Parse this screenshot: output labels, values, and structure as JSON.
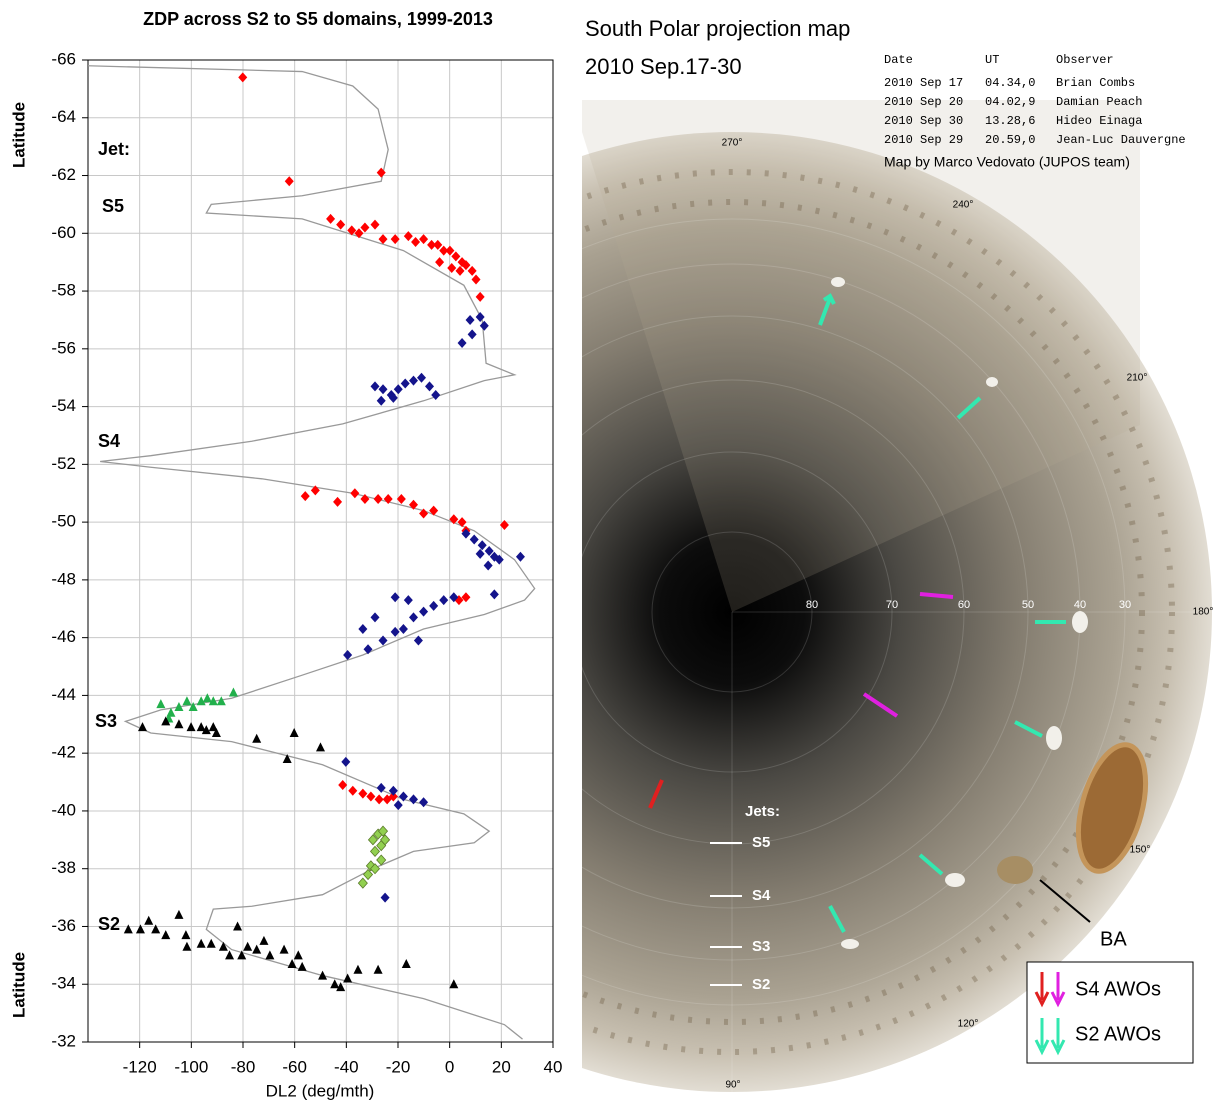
{
  "chart_data": {
    "type": "scatter",
    "title": "ZDP across S2 to S5 domains, 1999-2013",
    "x_label": "DL2 (deg/mth)",
    "y_label": "Latitude",
    "annotations": [
      "Jet:",
      "S5",
      "S4",
      "S3",
      "S2"
    ],
    "xlim": [
      -140,
      40
    ],
    "ylim": [
      -32,
      -66
    ],
    "xticks": [
      -120,
      -100,
      -80,
      -60,
      -40,
      -20,
      0,
      20,
      40
    ],
    "yticks": [
      -66,
      -64,
      -62,
      -60,
      -58,
      -56,
      -54,
      -52,
      -50,
      -48,
      -46,
      -44,
      -42,
      -40,
      -38,
      -36,
      -34,
      -32
    ],
    "grid": true,
    "series": [
      {
        "color": "#999999",
        "line": true,
        "x": [
          -140,
          -57.1,
          -37.5,
          -27.7,
          -23.8,
          -26.5,
          -57.1,
          -92.3,
          -94.2,
          -57.1,
          -17.9,
          5.5,
          12.6,
          14.1,
          25.1,
          13.4,
          -10.1,
          -41.4,
          -76.6,
          -115.7,
          -135.3,
          -115.7,
          -72.7,
          -37.5,
          -10.1,
          9.5,
          25.1,
          32.9,
          29.0,
          13.4,
          -10.1,
          -33.6,
          -57.1,
          -84.4,
          -111.8,
          -125.5,
          -115.7,
          -84.4,
          -49.2,
          -17.9,
          5.5,
          15.3,
          9.5,
          -14.0,
          -29.7,
          -49.2,
          -76.6,
          -91.5,
          -94.2,
          -84.4,
          -49.2,
          -10.1,
          21.2,
          28.2
        ],
        "values": [
          -65.8,
          -65.6,
          -65.1,
          -64.3,
          -62.9,
          -61.8,
          -61.3,
          -61.0,
          -60.7,
          -60.5,
          -59.4,
          -58.2,
          -57.0,
          -55.5,
          -55.1,
          -54.9,
          -54.2,
          -53.4,
          -52.8,
          -52.3,
          -52.1,
          -51.9,
          -51.5,
          -51.0,
          -50.4,
          -49.7,
          -48.7,
          -47.7,
          -47.3,
          -46.8,
          -46.3,
          -45.4,
          -44.7,
          -43.9,
          -43.5,
          -43.1,
          -42.7,
          -42.4,
          -41.6,
          -40.4,
          -39.9,
          -39.3,
          -38.9,
          -38.6,
          -38.0,
          -37.1,
          -36.7,
          -36.6,
          -35.9,
          -35.2,
          -34.3,
          -33.5,
          -32.6,
          -32.1
        ]
      },
      {
        "color": "#ff0000",
        "marker": "diamond",
        "x": [
          -80.1,
          -62.1,
          -26.5,
          -46.1,
          -42.2,
          -37.9,
          -35.1,
          -32.8,
          -28.9,
          -25.8,
          -21.1,
          -16.0,
          -13.2,
          -10.1,
          -7.0,
          -4.6,
          -2.3,
          0.1,
          2.4,
          4.8,
          6.3,
          8.7,
          10.2,
          11.8,
          -3.9,
          0.8,
          4.0,
          -55.9,
          -52.0,
          -43.4,
          -36.7,
          -32.8,
          -27.7,
          -23.8,
          -18.7,
          -14.0,
          -10.1,
          -6.2,
          1.6,
          4.8,
          6.3,
          21.2,
          3.6,
          6.3,
          -41.4,
          -37.5,
          -33.6,
          -30.5,
          -27.3,
          -24.2,
          -21.8
        ],
        "values": [
          -65.4,
          -61.8,
          -62.1,
          -60.5,
          -60.3,
          -60.1,
          -60.0,
          -60.2,
          -60.3,
          -59.8,
          -59.8,
          -59.9,
          -59.7,
          -59.8,
          -59.6,
          -59.6,
          -59.4,
          -59.4,
          -59.2,
          -59.0,
          -58.9,
          -58.7,
          -58.4,
          -57.8,
          -59.0,
          -58.8,
          -58.7,
          -50.9,
          -51.1,
          -50.7,
          -51.0,
          -50.8,
          -50.8,
          -50.8,
          -50.8,
          -50.6,
          -50.3,
          -50.4,
          -50.1,
          -50.0,
          -49.7,
          -49.9,
          -47.3,
          -47.4,
          -40.9,
          -40.7,
          -40.6,
          -40.5,
          -40.4,
          -40.4,
          -40.5
        ]
      },
      {
        "color": "#14148c",
        "marker": "diamond",
        "x": [
          7.9,
          11.8,
          13.4,
          4.8,
          8.7,
          -28.9,
          -25.8,
          -22.6,
          -19.9,
          -17.2,
          -14.0,
          -10.9,
          -7.8,
          -5.4,
          -26.5,
          -21.8,
          6.3,
          9.5,
          12.6,
          15.3,
          17.3,
          19.2,
          14.9,
          27.4,
          11.8,
          -39.5,
          -31.6,
          -25.8,
          -21.1,
          -17.9,
          -14.0,
          -10.1,
          -6.2,
          -2.3,
          1.6,
          -21.1,
          -16.0,
          -12.1,
          -33.6,
          -28.9,
          17.3,
          -40.2,
          -26.5,
          -21.8,
          -17.9,
          -14.0,
          -10.1,
          -19.9,
          -25.0
        ],
        "values": [
          -57.0,
          -57.1,
          -56.8,
          -56.2,
          -56.5,
          -54.7,
          -54.6,
          -54.4,
          -54.6,
          -54.8,
          -54.9,
          -55.0,
          -54.7,
          -54.4,
          -54.2,
          -54.3,
          -49.6,
          -49.4,
          -49.2,
          -49.0,
          -48.8,
          -48.7,
          -48.5,
          -48.8,
          -48.9,
          -45.4,
          -45.6,
          -45.9,
          -46.2,
          -46.3,
          -46.7,
          -46.9,
          -47.1,
          -47.3,
          -47.4,
          -47.4,
          -47.3,
          -45.9,
          -46.3,
          -46.7,
          -47.5,
          -41.7,
          -40.8,
          -40.7,
          -40.5,
          -40.4,
          -40.3,
          -40.2,
          -37.0
        ]
      },
      {
        "color": "#22b04c",
        "marker": "triangle",
        "x": [
          -111.8,
          -107.9,
          -104.8,
          -101.7,
          -99.3,
          -96.2,
          -93.8,
          -91.5,
          -88.4,
          -83.7,
          -108.7
        ],
        "values": [
          -43.7,
          -43.4,
          -43.6,
          -43.8,
          -43.6,
          -43.8,
          -43.9,
          -43.8,
          -43.8,
          -44.1,
          -43.2
        ]
      },
      {
        "color": "#000000",
        "marker": "triangle",
        "x": [
          -118.9,
          -109.9,
          -104.8,
          -100.1,
          -96.2,
          -94.2,
          -90.3,
          -74.7,
          -60.2,
          -62.9,
          -50.0,
          -91.5,
          -124.4,
          -119.7,
          -116.5,
          -113.8,
          -109.9,
          -104.8,
          -102.1,
          -96.2,
          -92.3,
          -87.6,
          -85.2,
          -82.1,
          -78.2,
          -74.7,
          -69.6,
          -64.1,
          -61.0,
          -57.1,
          -49.2,
          -44.5,
          -42.2,
          -39.5,
          -35.5,
          -27.7,
          -16.8,
          1.6,
          -101.7,
          -80.5,
          -71.9,
          -58.6
        ],
        "values": [
          -42.9,
          -43.1,
          -43.0,
          -42.9,
          -42.9,
          -42.8,
          -42.7,
          -42.5,
          -42.7,
          -41.8,
          -42.2,
          -42.9,
          -35.9,
          -35.9,
          -36.2,
          -35.9,
          -35.7,
          -36.4,
          -35.7,
          -35.4,
          -35.4,
          -35.3,
          -35.0,
          -36.0,
          -35.3,
          -35.2,
          -35.0,
          -35.2,
          -34.7,
          -34.6,
          -34.3,
          -34.0,
          -33.9,
          -34.2,
          -34.5,
          -34.5,
          -34.7,
          -34.0,
          -35.3,
          -35.0,
          -35.5,
          -35.0
        ]
      },
      {
        "color": "#92d050",
        "marker": "diamond",
        "x": [
          -29.7,
          -27.7,
          -25.8,
          -28.9,
          -26.5,
          -30.5,
          -31.6,
          -33.6,
          -28.9,
          -26.5,
          -25.0
        ],
        "values": [
          -39.0,
          -39.2,
          -39.3,
          -38.6,
          -38.3,
          -38.1,
          -37.8,
          -37.5,
          -38.0,
          -38.8,
          -39.0
        ]
      }
    ]
  },
  "map": {
    "title": "South Polar projection map",
    "subtitle": "2010 Sep.17-30",
    "table": {
      "header": [
        "Date",
        "UT",
        "Observer"
      ],
      "rows": [
        [
          "2010 Sep 17",
          "04.34,0",
          "Brian Combs"
        ],
        [
          "2010 Sep 20",
          "04.02,9",
          "Damian Peach"
        ],
        [
          "2010 Sep 30",
          "13.28,6",
          "Hideo Einaga"
        ],
        [
          "2010 Sep 29",
          "20.59,0",
          "Jean-Luc Dauvergne"
        ]
      ]
    },
    "credit": "Map by Marco Vedovato (JUPOS team)",
    "longitudes": [
      "270°",
      "240°",
      "210°",
      "180°",
      "150°",
      "120°",
      "90°"
    ],
    "latitudes": [
      "80",
      "70",
      "60",
      "50",
      "40",
      "30"
    ],
    "jets_title": "Jets:",
    "jets": [
      "S5",
      "S4",
      "S3",
      "S2"
    ],
    "ba": "BA",
    "legend": [
      "S4 AWOs",
      "S2 AWOs"
    ]
  }
}
